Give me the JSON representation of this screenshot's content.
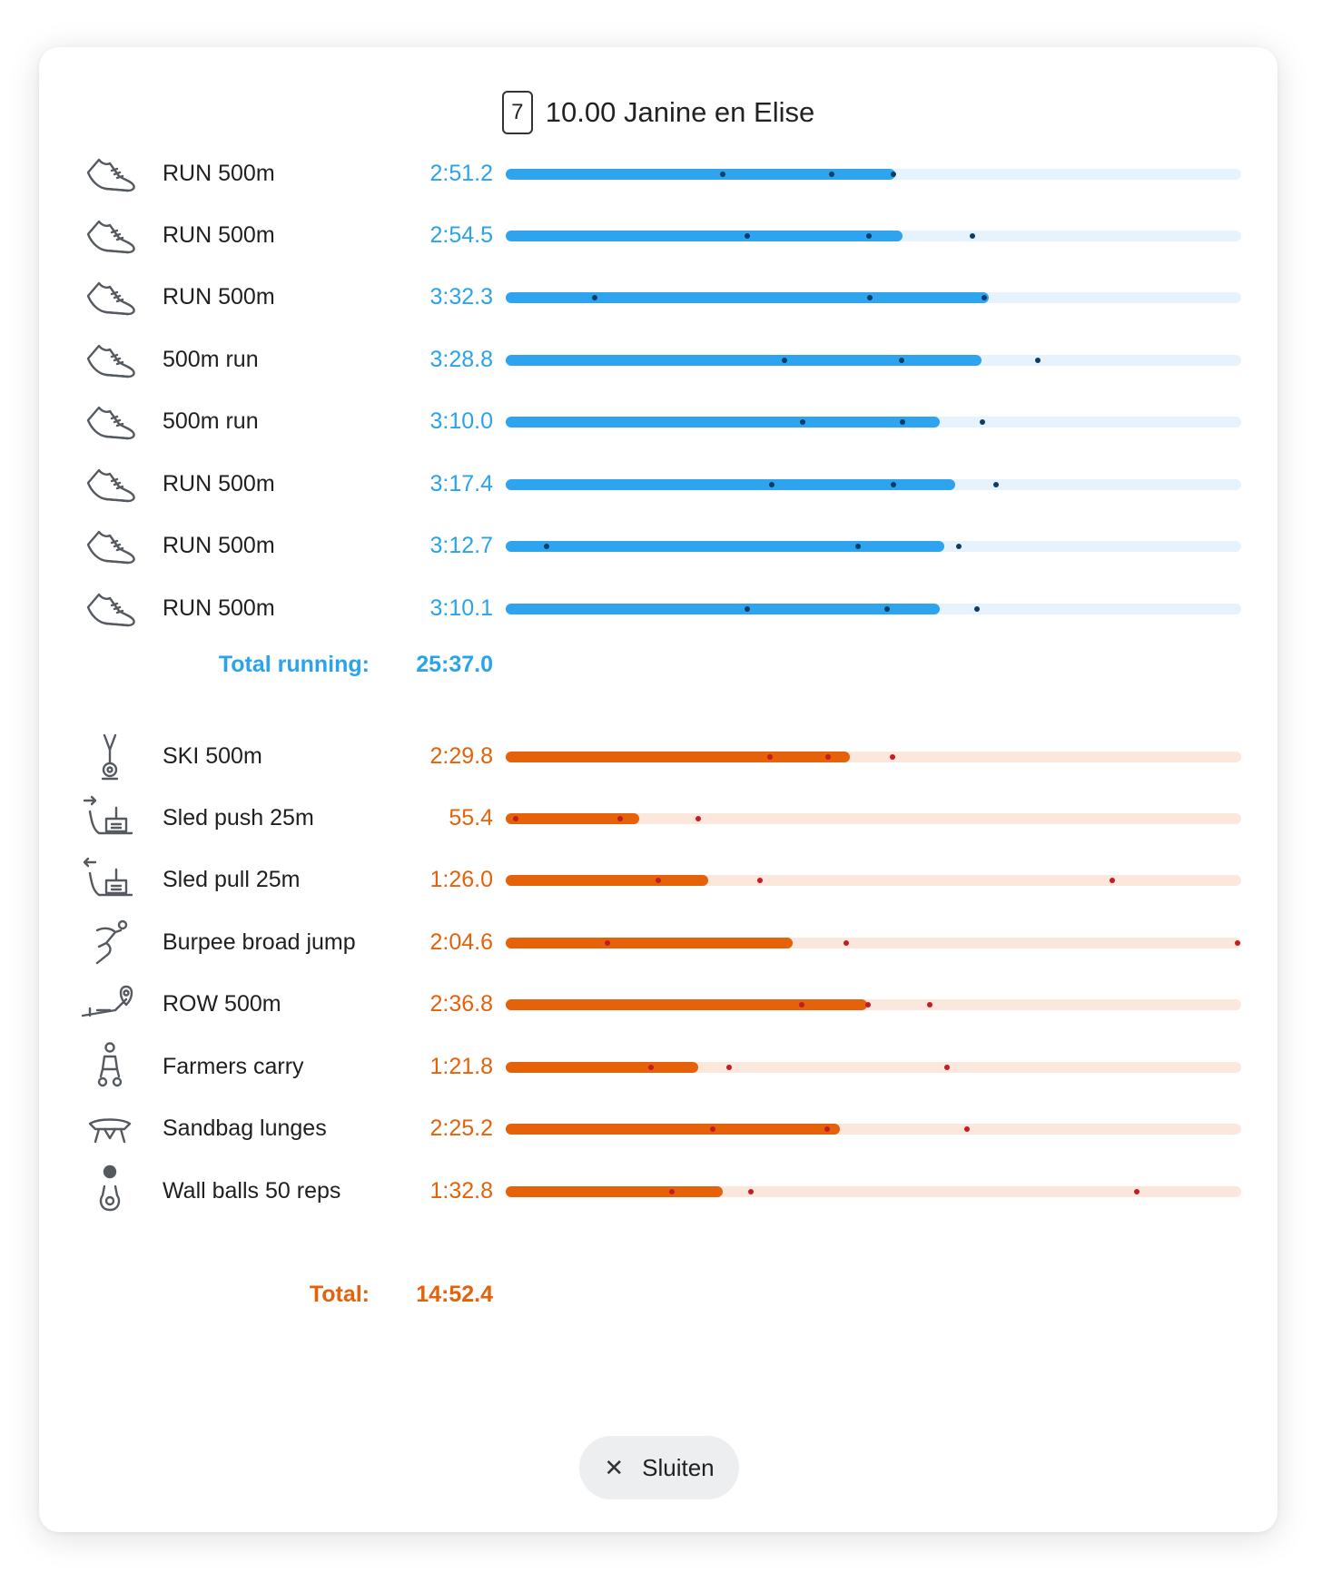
{
  "header": {
    "lane_number": "7",
    "title": "10.00 Janine en Elise"
  },
  "runs": [
    {
      "label": "RUN 500m",
      "time": "2:51.2",
      "icon": "running-shoe-icon",
      "fill": 0.53,
      "markers": [
        0.295,
        0.443,
        0.527
      ]
    },
    {
      "label": "RUN 500m",
      "time": "2:54.5",
      "icon": "running-shoe-icon",
      "fill": 0.54,
      "markers": [
        0.328,
        0.494,
        0.635
      ]
    },
    {
      "label": "RUN 500m",
      "time": "3:32.3",
      "icon": "running-shoe-icon",
      "fill": 0.657,
      "markers": [
        0.121,
        0.495,
        0.65
      ]
    },
    {
      "label": "500m run",
      "time": "3:28.8",
      "icon": "running-shoe-icon",
      "fill": 0.647,
      "markers": [
        0.379,
        0.538,
        0.723
      ]
    },
    {
      "label": "500m run",
      "time": "3:10.0",
      "icon": "running-shoe-icon",
      "fill": 0.59,
      "markers": [
        0.404,
        0.539,
        0.648
      ]
    },
    {
      "label": "RUN 500m",
      "time": "3:17.4",
      "icon": "running-shoe-icon",
      "fill": 0.611,
      "markers": [
        0.362,
        0.527,
        0.667
      ]
    },
    {
      "label": "RUN 500m",
      "time": "3:12.7",
      "icon": "running-shoe-icon",
      "fill": 0.596,
      "markers": [
        0.055,
        0.479,
        0.616
      ]
    },
    {
      "label": "RUN 500m",
      "time": "3:10.1",
      "icon": "running-shoe-icon",
      "fill": 0.59,
      "markers": [
        0.329,
        0.518,
        0.641
      ]
    }
  ],
  "run_total": {
    "label": "Total running:",
    "value": "25:37.0"
  },
  "stations": [
    {
      "label": "SKI 500m",
      "time": "2:29.8",
      "icon": "skierg-icon",
      "fill": 0.468,
      "markers": [
        0.359,
        0.438,
        0.526
      ]
    },
    {
      "label": "Sled push 25m",
      "time": "55.4",
      "icon": "sled-push-icon",
      "fill": 0.182,
      "markers": [
        0.013,
        0.155,
        0.262
      ]
    },
    {
      "label": "Sled pull 25m",
      "time": "1:26.0",
      "icon": "sled-pull-icon",
      "fill": 0.275,
      "markers": [
        0.208,
        0.346,
        0.825
      ]
    },
    {
      "label": "Burpee broad jump",
      "time": "2:04.6",
      "icon": "burpee-broad-jump-icon",
      "fill": 0.39,
      "markers": [
        0.138,
        0.463,
        0.995
      ]
    },
    {
      "label": "ROW 500m",
      "time": "2:36.8",
      "icon": "rower-icon",
      "fill": 0.491,
      "markers": [
        0.402,
        0.492,
        0.577
      ]
    },
    {
      "label": "Farmers carry",
      "time": "1:21.8",
      "icon": "farmers-carry-icon",
      "fill": 0.262,
      "markers": [
        0.197,
        0.304,
        0.6
      ]
    },
    {
      "label": "Sandbag lunges",
      "time": "2:25.2",
      "icon": "sandbag-lunges-icon",
      "fill": 0.454,
      "markers": [
        0.282,
        0.437,
        0.627
      ]
    },
    {
      "label": "Wall balls 50 reps",
      "time": "1:32.8",
      "icon": "wall-ball-icon",
      "fill": 0.295,
      "markers": [
        0.226,
        0.333,
        0.858
      ]
    }
  ],
  "station_total": {
    "label": "Total:",
    "value": "14:52.4"
  },
  "close_button": {
    "label": "Sluiten"
  },
  "colors": {
    "run_accent": "#2ea4ee",
    "run_track": "#e6f3fd",
    "run_marker": "#0d3d66",
    "station_accent": "#e5610a",
    "station_track": "#fbe7dc",
    "station_marker": "#c41b24"
  }
}
